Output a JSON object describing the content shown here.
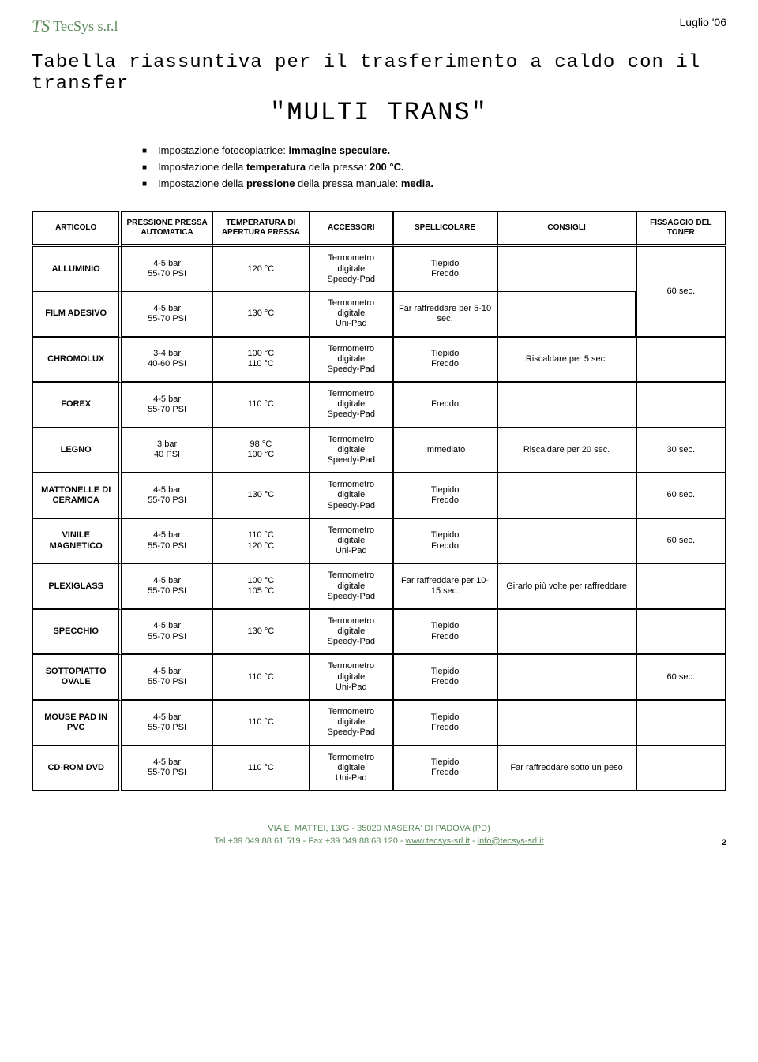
{
  "header": {
    "logo_prefix": "TS",
    "logo_text": "TecSys s.r.l",
    "date": "Luglio '06"
  },
  "title": "Tabella riassuntiva per il trasferimento a caldo con il transfer",
  "subtitle": "\"MULTI TRANS\"",
  "settings": [
    {
      "prefix": "Impostazione fotocopiatrice: ",
      "bold": "immagine speculare.",
      "suffix": ""
    },
    {
      "prefix": "Impostazione della ",
      "bold": "temperatura",
      "suffix": " della pressa: ",
      "bold2": "200 °C."
    },
    {
      "prefix": "Impostazione della ",
      "bold": "pressione",
      "suffix": " della pressa manuale: ",
      "bold2": "media."
    }
  ],
  "table": {
    "columns": [
      "ARTICOLO",
      "PRESSIONE PRESSA AUTOMATICA",
      "TEMPERATURA DI APERTURA PRESSA",
      "ACCESSORI",
      "SPELLICOLARE",
      "CONSIGLI",
      "FISSAGGIO DEL TONER"
    ],
    "groups": [
      {
        "rows": [
          {
            "articolo": "ALLUMINIO",
            "pressione": "4-5 bar\n55-70 PSI",
            "temperatura": "120 °C",
            "accessori": "Termometro digitale\nSpeedy-Pad",
            "spellicolare": "Tiepido\nFreddo",
            "consigli": "",
            "fissaggio": "60 sec.",
            "fissaggio_rowspan": 2
          },
          {
            "articolo": "FILM ADESIVO",
            "pressione": "4-5 bar\n55-70 PSI",
            "temperatura": "130 °C",
            "accessori": "Termometro digitale\nUni-Pad",
            "spellicolare": "Far raffreddare per 5-10 sec.",
            "consigli": ""
          }
        ]
      },
      {
        "rows": [
          {
            "articolo": "CHROMOLUX",
            "pressione": "3-4 bar\n40-60 PSI",
            "temperatura": "100 °C\n110 °C",
            "accessori": "Termometro digitale\nSpeedy-Pad",
            "spellicolare": "Tiepido\nFreddo",
            "consigli": "Riscaldare per 5 sec.",
            "fissaggio": ""
          }
        ]
      },
      {
        "rows": [
          {
            "articolo": "FOREX",
            "pressione": "4-5 bar\n55-70 PSI",
            "temperatura": "110 °C",
            "accessori": "Termometro digitale\nSpeedy-Pad",
            "spellicolare": "Freddo",
            "consigli": "",
            "fissaggio": ""
          }
        ]
      },
      {
        "rows": [
          {
            "articolo": "LEGNO",
            "pressione": "3 bar\n40 PSI",
            "temperatura": "98 °C\n100 °C",
            "accessori": "Termometro digitale\nSpeedy-Pad",
            "spellicolare": "Immediato",
            "consigli": "Riscaldare per 20 sec.",
            "fissaggio": "30 sec."
          }
        ]
      },
      {
        "rows": [
          {
            "articolo": "MATTONELLE DI CERAMICA",
            "pressione": "4-5 bar\n55-70 PSI",
            "temperatura": "130 °C",
            "accessori": "Termometro digitale\nSpeedy-Pad",
            "spellicolare": "Tiepido\nFreddo",
            "consigli": "",
            "fissaggio": "60 sec."
          }
        ]
      },
      {
        "rows": [
          {
            "articolo": "VINILE MAGNETICO",
            "pressione": "4-5 bar\n55-70 PSI",
            "temperatura": "110 °C\n120 °C",
            "accessori": "Termometro digitale\nUni-Pad",
            "spellicolare": "Tiepido\nFreddo",
            "consigli": "",
            "fissaggio": "60 sec."
          }
        ]
      },
      {
        "rows": [
          {
            "articolo": "PLEXIGLASS",
            "pressione": "4-5 bar\n55-70 PSI",
            "temperatura": "100 °C\n105 °C",
            "accessori": "Termometro digitale\nSpeedy-Pad",
            "spellicolare": "Far raffreddare per 10-15 sec.",
            "consigli": "Girarlo più volte per raffreddare",
            "fissaggio": ""
          }
        ]
      },
      {
        "rows": [
          {
            "articolo": "SPECCHIO",
            "pressione": "4-5 bar\n55-70 PSI",
            "temperatura": "130 °C",
            "accessori": "Termometro digitale\nSpeedy-Pad",
            "spellicolare": "Tiepido\nFreddo",
            "consigli": "",
            "fissaggio": ""
          }
        ]
      },
      {
        "rows": [
          {
            "articolo": "SOTTOPIATTO OVALE",
            "pressione": "4-5 bar\n55-70 PSI",
            "temperatura": "110 °C",
            "accessori": "Termometro digitale\nUni-Pad",
            "spellicolare": "Tiepido\nFreddo",
            "consigli": "",
            "fissaggio": "60 sec."
          }
        ]
      },
      {
        "rows": [
          {
            "articolo": "MOUSE PAD IN PVC",
            "pressione": "4-5 bar\n55-70 PSI",
            "temperatura": "110 °C",
            "accessori": "Termometro digitale\nSpeedy-Pad",
            "spellicolare": "Tiepido\nFreddo",
            "consigli": "",
            "fissaggio": ""
          }
        ]
      },
      {
        "rows": [
          {
            "articolo": "CD-ROM DVD",
            "pressione": "4-5 bar\n55-70 PSI",
            "temperatura": "110 °C",
            "accessori": "Termometro digitale\nUni-Pad",
            "spellicolare": "Tiepido\nFreddo",
            "consigli": "Far raffreddare sotto un peso",
            "fissaggio": ""
          }
        ]
      }
    ]
  },
  "footer": {
    "line1": "VIA E. MATTEI, 13/G - 35020 MASERA' DI PADOVA (PD)",
    "line2_prefix": "Tel +39 049 88 61 519 - Fax +39 049 88 68 120 - ",
    "link1": "www.tecsys-srl.it",
    "sep": " - ",
    "link2": "info@tecsys-srl.it",
    "page": "2"
  }
}
